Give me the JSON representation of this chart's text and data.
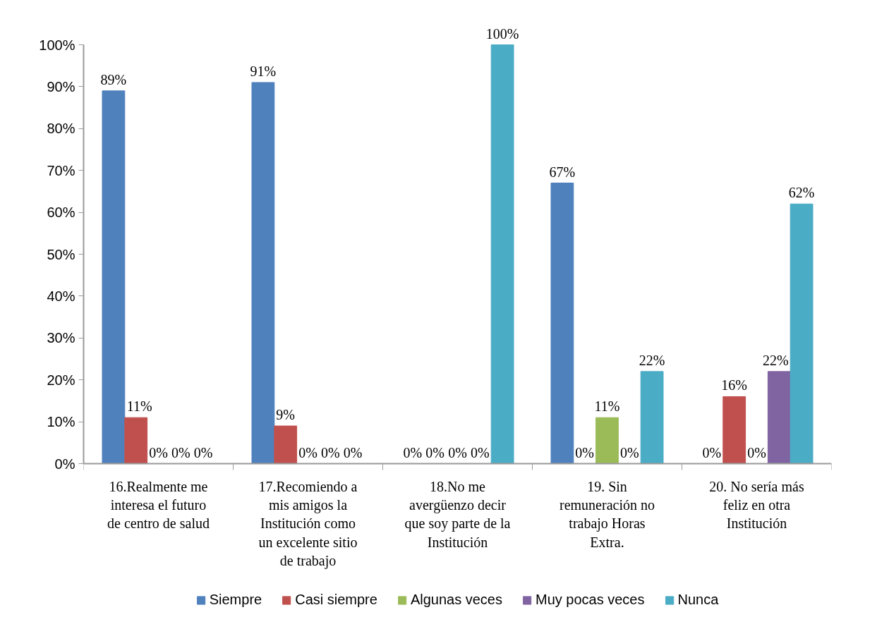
{
  "chart_data": {
    "type": "bar",
    "categories": [
      "16.Realmente me interesa el futuro de centro de salud",
      "17.Recomiendo a mis amigos la Institución como un excelente sitio de trabajo",
      "18.No me avergüenzo decir que soy parte de la Institución",
      "19. Sin remuneración no trabajo Horas Extra.",
      "20. No sería más feliz en otra Institución"
    ],
    "series": [
      {
        "name": "Siempre",
        "color": "#4f81bd",
        "values": [
          89,
          91,
          0,
          67,
          0
        ],
        "value_labels": [
          "89%",
          "91%",
          "0%",
          "67%",
          "0%"
        ]
      },
      {
        "name": "Casi siempre",
        "color": "#c0504d",
        "values": [
          11,
          9,
          0,
          0,
          16
        ],
        "value_labels": [
          "11%",
          "9%",
          "0%",
          "0%",
          "16%"
        ]
      },
      {
        "name": "Algunas veces",
        "color": "#9bbb59",
        "values": [
          0,
          0,
          0,
          11,
          0
        ],
        "value_labels": [
          "0%",
          "0%",
          "0%",
          "11%",
          "0%"
        ]
      },
      {
        "name": "Muy pocas veces",
        "color": "#8064a2",
        "values": [
          0,
          0,
          0,
          0,
          22
        ],
        "value_labels": [
          "0%",
          "0%",
          "0%",
          "0%",
          "22%"
        ]
      },
      {
        "name": "Nunca",
        "color": "#4bacc6",
        "values": [
          0,
          0,
          100,
          22,
          62
        ],
        "value_labels": [
          "0%",
          "0%",
          "100%",
          "22%",
          "62%"
        ]
      }
    ],
    "ylim": [
      0,
      100
    ],
    "yticks": [
      {
        "value": 0,
        "label": "0%"
      },
      {
        "value": 10,
        "label": "10%"
      },
      {
        "value": 20,
        "label": "20%"
      },
      {
        "value": 30,
        "label": "30%"
      },
      {
        "value": 40,
        "label": "40%"
      },
      {
        "value": 50,
        "label": "50%"
      },
      {
        "value": 60,
        "label": "60%"
      },
      {
        "value": 70,
        "label": "70%"
      },
      {
        "value": 80,
        "label": "80%"
      },
      {
        "value": 90,
        "label": "90%"
      },
      {
        "value": 100,
        "label": "100%"
      }
    ],
    "legend": "bottom"
  }
}
